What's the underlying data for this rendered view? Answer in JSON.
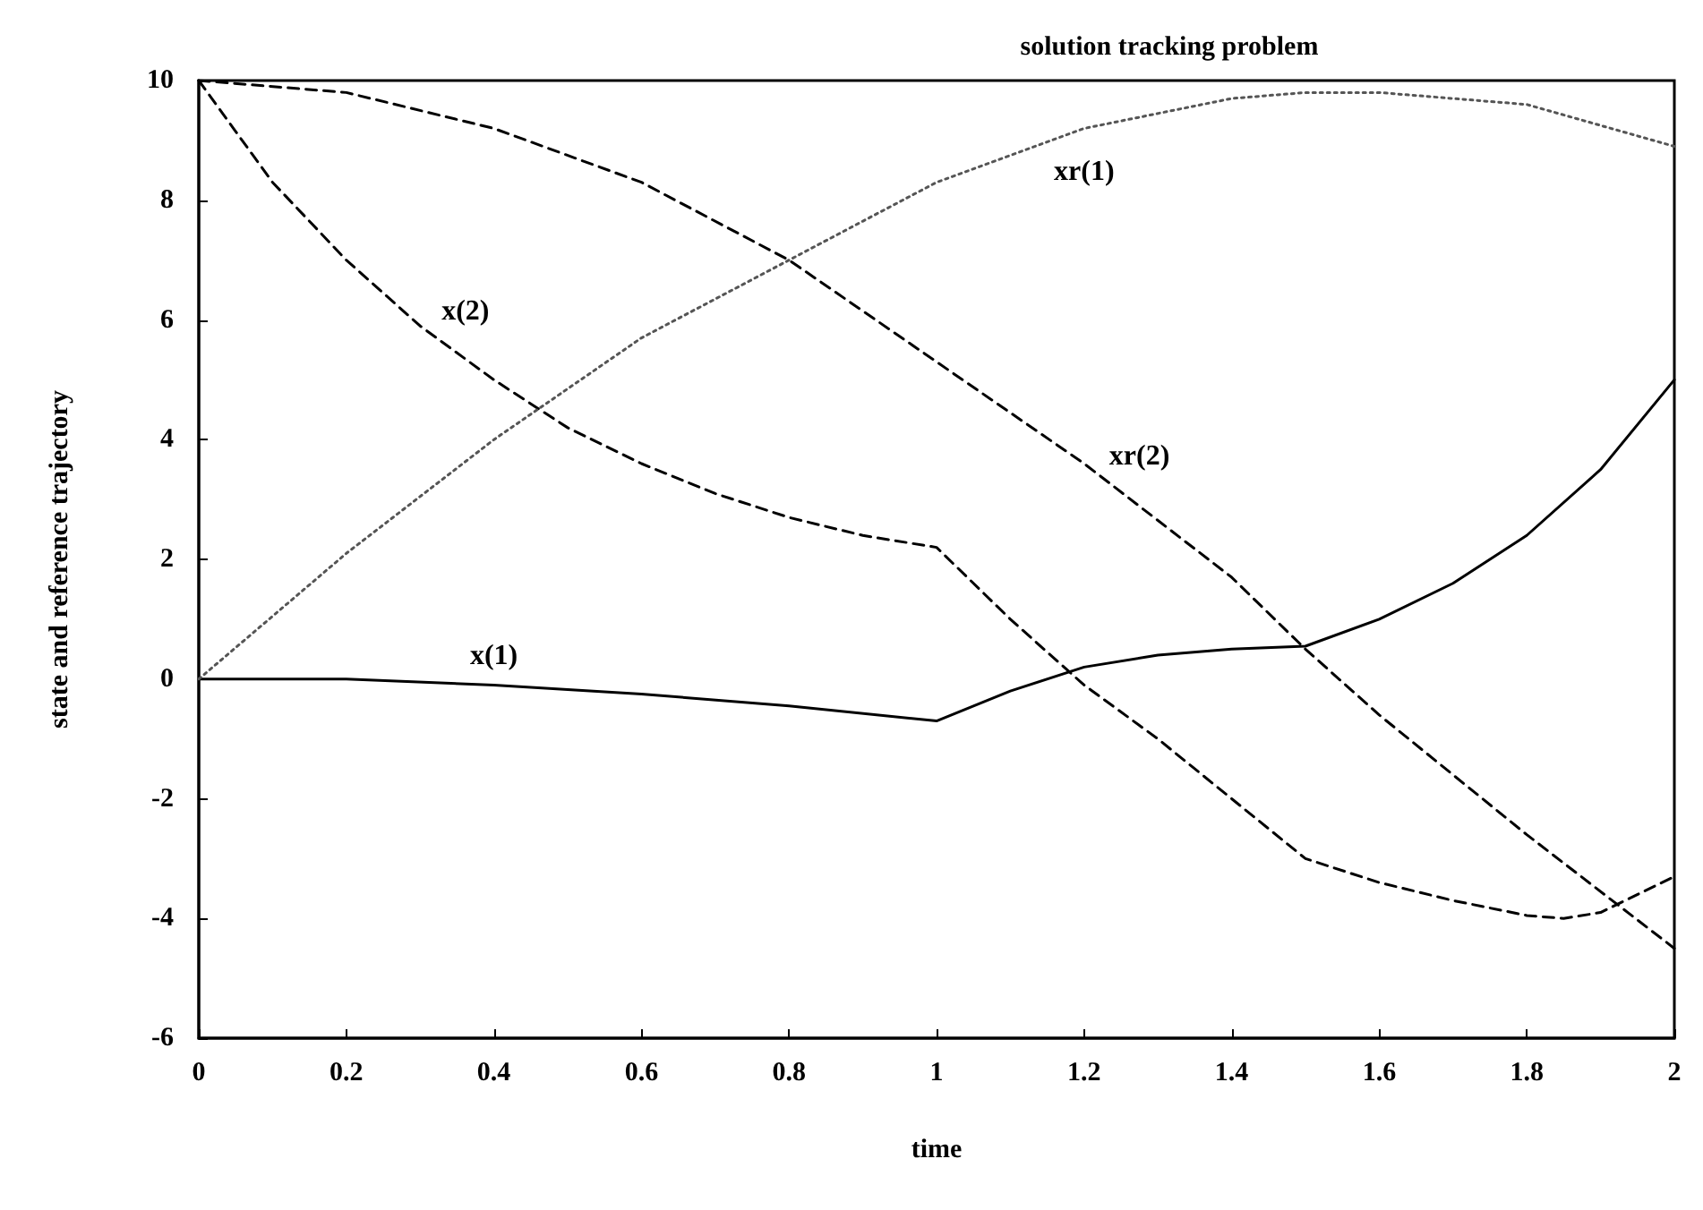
{
  "chart_data": {
    "type": "line",
    "title": "solution tracking problem",
    "xlabel": "time",
    "ylabel": "state and reference trajectory",
    "xlim": [
      0,
      2
    ],
    "xticks": [
      0,
      0.2,
      0.4,
      0.6,
      0.8,
      1,
      1.2,
      1.4,
      1.6,
      1.8,
      2
    ],
    "ylim": [
      -6,
      10
    ],
    "yticks": [
      -6,
      -4,
      -2,
      0,
      2,
      4,
      6,
      8,
      10
    ],
    "grid": false,
    "legend": false,
    "marker": "none",
    "series": [
      {
        "name": "x(1)",
        "color": "#000000",
        "line_style": "solid",
        "x": [
          0,
          0.2,
          0.4,
          0.6,
          0.8,
          1.0,
          1.1,
          1.2,
          1.3,
          1.4,
          1.5,
          1.6,
          1.7,
          1.8,
          1.9,
          2.0
        ],
        "values": [
          0,
          0,
          -0.1,
          -0.25,
          -0.45,
          -0.7,
          -0.2,
          0.2,
          0.4,
          0.5,
          0.55,
          1.0,
          1.6,
          2.4,
          3.5,
          5.0
        ]
      },
      {
        "name": "x(2)",
        "color": "#000000",
        "line_style": "dashed",
        "x": [
          0,
          0.1,
          0.2,
          0.3,
          0.4,
          0.5,
          0.6,
          0.7,
          0.8,
          0.9,
          1.0,
          1.1,
          1.2,
          1.3,
          1.4,
          1.5,
          1.6,
          1.7,
          1.8,
          1.85,
          1.9,
          2.0
        ],
        "values": [
          10,
          8.3,
          7.0,
          5.9,
          5.0,
          4.2,
          3.6,
          3.1,
          2.7,
          2.4,
          2.2,
          1.0,
          -0.1,
          -1.0,
          -2.0,
          -3.0,
          -3.4,
          -3.7,
          -3.95,
          -4.0,
          -3.9,
          -3.3
        ]
      },
      {
        "name": "xr(1)",
        "color": "#555555",
        "line_style": "dotted",
        "x": [
          0,
          0.2,
          0.4,
          0.6,
          0.8,
          1.0,
          1.2,
          1.4,
          1.5,
          1.6,
          1.8,
          2.0
        ],
        "values": [
          0,
          2.1,
          4.0,
          5.7,
          7.0,
          8.3,
          9.2,
          9.7,
          9.8,
          9.8,
          9.6,
          8.9
        ]
      },
      {
        "name": "xr(2)",
        "color": "#000000",
        "line_style": "dashed",
        "x": [
          0,
          0.2,
          0.4,
          0.6,
          0.8,
          1.0,
          1.2,
          1.4,
          1.5,
          1.6,
          1.8,
          2.0
        ],
        "values": [
          10,
          9.8,
          9.2,
          8.3,
          7.0,
          5.3,
          3.6,
          1.7,
          0.5,
          -0.6,
          -2.6,
          -4.5
        ]
      }
    ]
  }
}
